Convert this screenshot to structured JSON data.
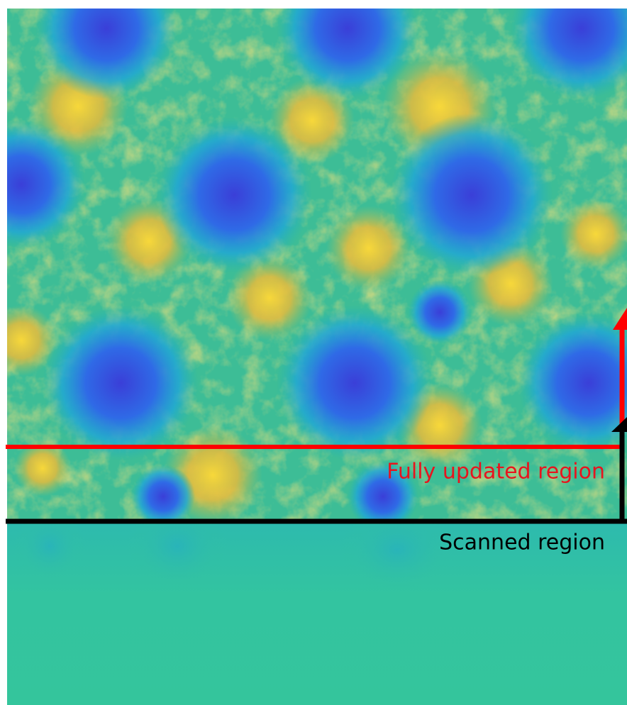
{
  "annotations": {
    "updated": "Fully updated region",
    "scanned": "Scanned region"
  }
}
